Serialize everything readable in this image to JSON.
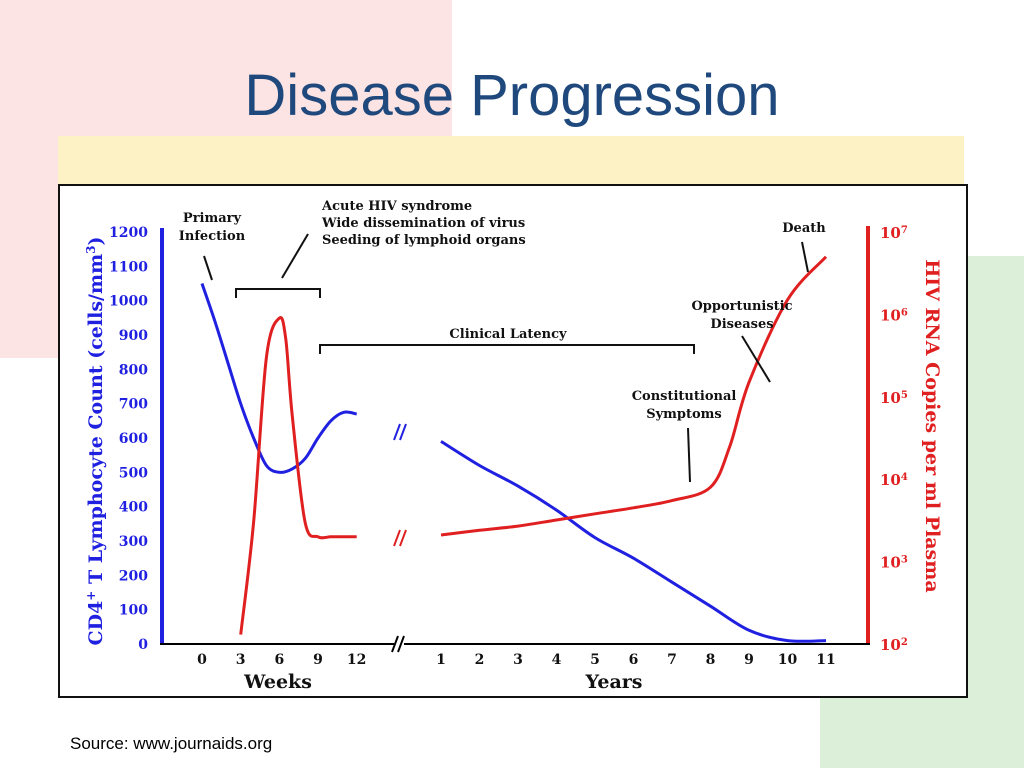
{
  "slide": {
    "title": "Disease Progression",
    "source": "Source: www.journaids.org"
  },
  "colors": {
    "cd4": "#2020e0",
    "rna": "#e02020",
    "title": "#1f497d"
  },
  "chart_data": {
    "type": "line",
    "left_axis": {
      "label": "CD4+ T Lymphocyte Count (cells/mm3)",
      "ticks": [
        "0",
        "100",
        "200",
        "300",
        "400",
        "500",
        "600",
        "700",
        "800",
        "900",
        "1000",
        "1100",
        "1200"
      ],
      "range": [
        0,
        1200
      ]
    },
    "right_axis": {
      "label": "HIV RNA Copies per ml Plasma",
      "ticks": [
        "10^2",
        "10^3",
        "10^4",
        "10^5",
        "10^6",
        "10^7"
      ],
      "scale": "log",
      "range": [
        100,
        10000000
      ]
    },
    "x_axis": {
      "weeks_label": "Weeks",
      "years_label": "Years",
      "weeks_ticks": [
        0,
        3,
        6,
        9,
        12
      ],
      "years_ticks": [
        1,
        2,
        3,
        4,
        5,
        6,
        7,
        8,
        9,
        10,
        11
      ],
      "break": "between week 12 and year 1"
    },
    "series": [
      {
        "key": "cd4",
        "axis": "left",
        "segments": [
          {
            "unit": "weeks",
            "x": [
              0,
              1,
              2,
              3,
              4,
              5,
              6,
              7,
              8,
              9,
              10,
              11,
              12
            ],
            "y": [
              1050,
              940,
              820,
              700,
              600,
              520,
              500,
              510,
              540,
              600,
              650,
              675,
              670
            ]
          },
          {
            "unit": "years",
            "x": [
              1,
              2,
              3,
              4,
              5,
              6,
              7,
              8,
              9,
              10,
              11
            ],
            "y": [
              590,
              520,
              460,
              390,
              310,
              250,
              180,
              110,
              40,
              10,
              10
            ]
          }
        ]
      },
      {
        "key": "rna",
        "axis": "right",
        "segments": [
          {
            "unit": "weeks",
            "x": [
              3,
              4,
              5,
              6,
              6.5,
              7,
              8,
              9,
              10,
              11,
              12
            ],
            "y": [
              130,
              3000,
              300000,
              900000,
              500000,
              60000,
              3000,
              2000,
              2000,
              2000,
              2000
            ]
          },
          {
            "unit": "years",
            "x": [
              1,
              2,
              3,
              4,
              5,
              6,
              7,
              8,
              8.5,
              9,
              10,
              11
            ],
            "y": [
              2100,
              2400,
              2700,
              3200,
              3800,
              4500,
              5500,
              8000,
              25000,
              150000,
              1500000,
              5000000
            ]
          }
        ]
      }
    ],
    "annotations": {
      "primary_infection": "Primary Infection",
      "acute": [
        "Acute HIV syndrome",
        "Wide dissemination of virus",
        "Seeding of lymphoid organs"
      ],
      "clinical_latency": "Clinical Latency",
      "constitutional": "Constitutional Symptoms",
      "opportunistic": "Opportunistic Diseases",
      "death": "Death"
    }
  }
}
